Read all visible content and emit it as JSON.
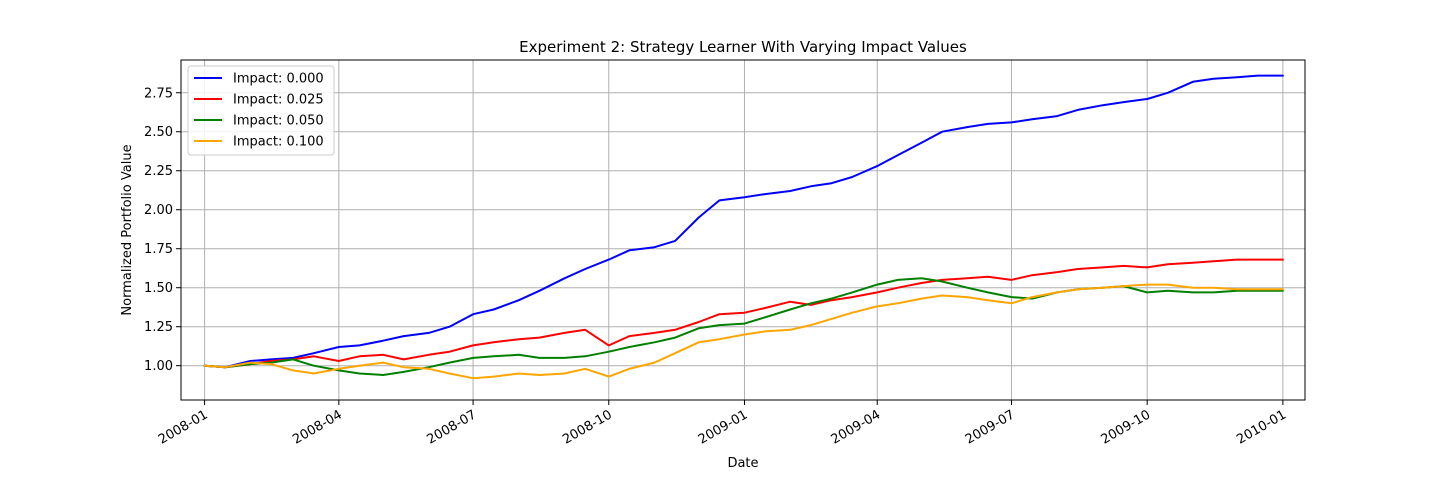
{
  "chart_data": {
    "type": "line",
    "title": "Experiment 2: Strategy Learner With Varying Impact Values",
    "xlabel": "Date",
    "ylabel": "Normalized Portfolio Value",
    "x_range": [
      "2007-12-16",
      "2010-01-16"
    ],
    "ylim": [
      0.78,
      2.96
    ],
    "x_ticks": [
      "2008-01",
      "2008-04",
      "2008-07",
      "2008-10",
      "2009-01",
      "2009-04",
      "2009-07",
      "2009-10",
      "2010-01"
    ],
    "y_ticks": [
      1.0,
      1.25,
      1.5,
      1.75,
      2.0,
      2.25,
      2.5,
      2.75
    ],
    "y_tick_labels": [
      "1.00",
      "1.25",
      "1.50",
      "1.75",
      "2.00",
      "2.25",
      "2.50",
      "2.75"
    ],
    "grid": true,
    "legend_position": "top-left",
    "x": [
      "2008-01-01",
      "2008-01-15",
      "2008-02-01",
      "2008-02-15",
      "2008-03-01",
      "2008-03-15",
      "2008-04-01",
      "2008-04-15",
      "2008-05-01",
      "2008-05-15",
      "2008-06-01",
      "2008-06-15",
      "2008-07-01",
      "2008-07-15",
      "2008-08-01",
      "2008-08-15",
      "2008-09-01",
      "2008-09-15",
      "2008-10-01",
      "2008-10-15",
      "2008-11-01",
      "2008-11-15",
      "2008-12-01",
      "2008-12-15",
      "2009-01-01",
      "2009-01-15",
      "2009-02-01",
      "2009-02-15",
      "2009-03-01",
      "2009-03-15",
      "2009-04-01",
      "2009-04-15",
      "2009-05-01",
      "2009-05-15",
      "2009-06-01",
      "2009-06-15",
      "2009-07-01",
      "2009-07-15",
      "2009-08-01",
      "2009-08-15",
      "2009-09-01",
      "2009-09-15",
      "2009-10-01",
      "2009-10-15",
      "2009-11-01",
      "2009-11-15",
      "2009-12-01",
      "2009-12-15",
      "2010-01-01"
    ],
    "series": [
      {
        "name": "Impact: 0.000",
        "color": "#0000ff",
        "values": [
          1.0,
          0.99,
          1.03,
          1.04,
          1.05,
          1.08,
          1.12,
          1.13,
          1.16,
          1.19,
          1.21,
          1.25,
          1.33,
          1.36,
          1.42,
          1.48,
          1.56,
          1.62,
          1.68,
          1.74,
          1.76,
          1.8,
          1.95,
          2.06,
          2.08,
          2.1,
          2.12,
          2.15,
          2.17,
          2.21,
          2.28,
          2.35,
          2.43,
          2.5,
          2.53,
          2.55,
          2.56,
          2.58,
          2.6,
          2.64,
          2.67,
          2.69,
          2.71,
          2.75,
          2.82,
          2.84,
          2.85,
          2.86,
          2.86
        ]
      },
      {
        "name": "Impact: 0.025",
        "color": "#ff0000",
        "values": [
          1.0,
          0.99,
          1.01,
          1.03,
          1.04,
          1.06,
          1.03,
          1.06,
          1.07,
          1.04,
          1.07,
          1.09,
          1.13,
          1.15,
          1.17,
          1.18,
          1.21,
          1.23,
          1.13,
          1.19,
          1.21,
          1.23,
          1.28,
          1.33,
          1.34,
          1.37,
          1.41,
          1.39,
          1.42,
          1.44,
          1.47,
          1.5,
          1.53,
          1.55,
          1.56,
          1.57,
          1.55,
          1.58,
          1.6,
          1.62,
          1.63,
          1.64,
          1.63,
          1.65,
          1.66,
          1.67,
          1.68,
          1.68,
          1.68
        ]
      },
      {
        "name": "Impact: 0.050",
        "color": "#008000",
        "values": [
          1.0,
          0.99,
          1.01,
          1.02,
          1.04,
          1.0,
          0.97,
          0.95,
          0.94,
          0.96,
          0.99,
          1.02,
          1.05,
          1.06,
          1.07,
          1.05,
          1.05,
          1.06,
          1.09,
          1.12,
          1.15,
          1.18,
          1.24,
          1.26,
          1.27,
          1.31,
          1.36,
          1.4,
          1.43,
          1.47,
          1.52,
          1.55,
          1.56,
          1.54,
          1.5,
          1.47,
          1.44,
          1.43,
          1.47,
          1.49,
          1.5,
          1.51,
          1.47,
          1.48,
          1.47,
          1.47,
          1.48,
          1.48,
          1.48
        ]
      },
      {
        "name": "Impact: 0.100",
        "color": "#ffa500",
        "values": [
          1.0,
          0.99,
          1.02,
          1.01,
          0.97,
          0.95,
          0.98,
          1.0,
          1.02,
          0.99,
          0.98,
          0.95,
          0.92,
          0.93,
          0.95,
          0.94,
          0.95,
          0.98,
          0.93,
          0.98,
          1.02,
          1.08,
          1.15,
          1.17,
          1.2,
          1.22,
          1.23,
          1.26,
          1.3,
          1.34,
          1.38,
          1.4,
          1.43,
          1.45,
          1.44,
          1.42,
          1.4,
          1.44,
          1.47,
          1.49,
          1.5,
          1.51,
          1.52,
          1.52,
          1.5,
          1.5,
          1.49,
          1.49,
          1.49
        ]
      }
    ]
  }
}
